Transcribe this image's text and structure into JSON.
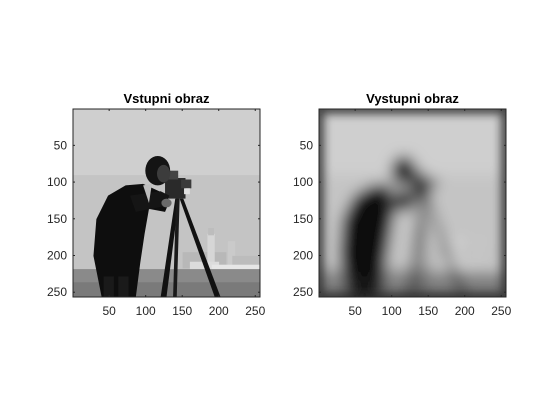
{
  "figure": {
    "background": "#ffffff",
    "axis_color": "#262626"
  },
  "chart_data": [
    {
      "type": "image",
      "title": "Vstupni obraz",
      "colormap": "gray",
      "xlim": [
        0.5,
        256.5
      ],
      "ylim": [
        0.5,
        256.5
      ],
      "y_direction": "reversed",
      "xticks": [
        50,
        100,
        150,
        200,
        250
      ],
      "yticks": [
        50,
        100,
        150,
        200,
        250
      ],
      "content": "cameraman photograph, sharp"
    },
    {
      "type": "image",
      "title": "Vystupni obraz",
      "colormap": "gray",
      "xlim": [
        0.5,
        256.5
      ],
      "ylim": [
        0.5,
        256.5
      ],
      "y_direction": "reversed",
      "xticks": [
        50,
        100,
        150,
        200,
        250
      ],
      "yticks": [
        50,
        100,
        150,
        200,
        250
      ],
      "content": "cameraman photograph, heavily blurred (low-pass filtered)"
    }
  ]
}
